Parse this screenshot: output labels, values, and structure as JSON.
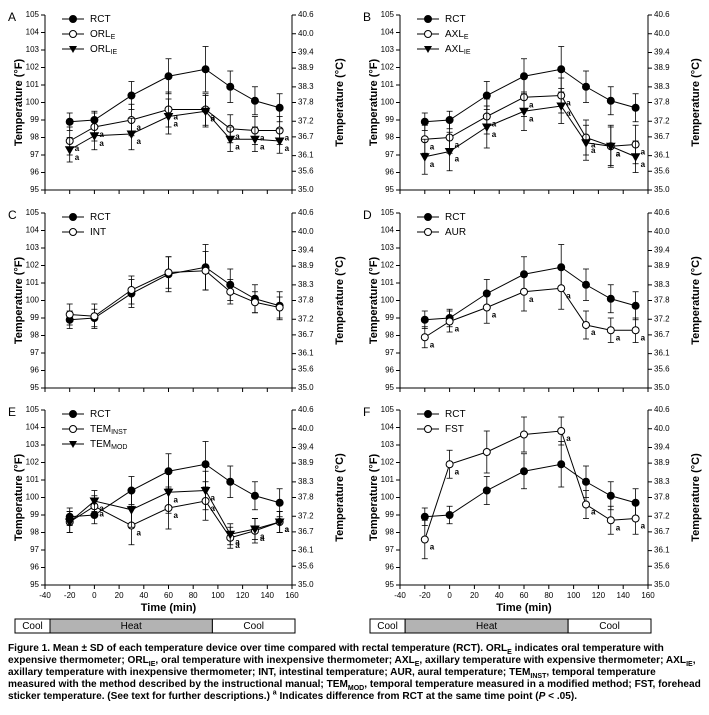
{
  "chart_data": [
    {
      "type": "line",
      "panel_label": "A",
      "ylabel": "Temperature (°F)",
      "y2label": "Temperature (°C)",
      "xtick_labels": false,
      "x": [
        -20,
        0,
        30,
        60,
        90,
        110,
        130,
        150
      ],
      "xlim": [
        -40,
        160
      ],
      "xticks": [
        -40,
        -20,
        0,
        20,
        40,
        60,
        80,
        100,
        120,
        140,
        160
      ],
      "ylim": [
        95,
        105
      ],
      "yticks": [
        95,
        96,
        97,
        98,
        99,
        100,
        101,
        102,
        103,
        104,
        105
      ],
      "y2lim": [
        35,
        40.6
      ],
      "y2ticks": [
        {
          "value": 35,
          "label": "35.0"
        },
        35.6,
        36.1,
        36.7,
        37.2,
        37.8,
        38.3,
        38.9,
        39.4,
        {
          "value": 40,
          "label": "40.0"
        },
        40.6
      ],
      "series": [
        {
          "name": "RCT",
          "marker": "filled-circle",
          "color": "#000000",
          "values": [
            98.9,
            99.0,
            100.4,
            101.5,
            101.9,
            100.9,
            100.1,
            99.7
          ],
          "errors": [
            0.5,
            0.5,
            0.8,
            1.0,
            1.3,
            0.9,
            0.8,
            0.8
          ],
          "sig": [
            null,
            null,
            null,
            null,
            null,
            null,
            null,
            null
          ]
        },
        {
          "name": "ORL",
          "subscript": "E",
          "marker": "open-circle",
          "color": "#000000",
          "values": [
            97.8,
            98.6,
            99.0,
            99.6,
            99.6,
            98.5,
            98.4,
            98.4
          ],
          "errors": [
            0.8,
            0.8,
            0.9,
            1.0,
            0.9,
            0.8,
            0.8,
            0.8
          ],
          "sig": [
            "a",
            "a",
            "a",
            "a",
            "a",
            "a",
            "a",
            "a"
          ]
        },
        {
          "name": "ORL",
          "subscript": "IE",
          "marker": "filled-triangle",
          "color": "#000000",
          "values": [
            97.3,
            98.1,
            98.2,
            99.2,
            99.5,
            97.9,
            97.9,
            97.8
          ],
          "errors": [
            0.7,
            0.8,
            0.9,
            1.0,
            0.9,
            0.7,
            0.7,
            0.7
          ],
          "sig": [
            "a",
            "a",
            "a",
            "a",
            "a",
            "a",
            "a",
            "a"
          ]
        }
      ]
    },
    {
      "type": "line",
      "panel_label": "B",
      "ylabel": "Temperature (°F)",
      "y2label": "Temperature (°C)",
      "xtick_labels": false,
      "x": [
        -20,
        0,
        30,
        60,
        90,
        110,
        130,
        150
      ],
      "xlim": [
        -40,
        160
      ],
      "xticks": [
        -40,
        -20,
        0,
        20,
        40,
        60,
        80,
        100,
        120,
        140,
        160
      ],
      "ylim": [
        95,
        105
      ],
      "yticks": [
        95,
        96,
        97,
        98,
        99,
        100,
        101,
        102,
        103,
        104,
        105
      ],
      "y2lim": [
        35,
        40.6
      ],
      "y2ticks": [
        {
          "value": 35,
          "label": "35.0"
        },
        35.6,
        36.1,
        36.7,
        37.2,
        37.8,
        38.3,
        38.9,
        39.4,
        {
          "value": 40,
          "label": "40.0"
        },
        40.6
      ],
      "series": [
        {
          "name": "RCT",
          "marker": "filled-circle",
          "color": "#000000",
          "values": [
            98.9,
            99.0,
            100.4,
            101.5,
            101.9,
            100.9,
            100.1,
            99.7
          ],
          "errors": [
            0.5,
            0.5,
            0.8,
            1.0,
            1.3,
            0.9,
            0.8,
            0.8
          ],
          "sig": [
            null,
            null,
            null,
            null,
            null,
            null,
            null,
            null
          ]
        },
        {
          "name": "AXL",
          "subscript": "E",
          "marker": "open-circle",
          "color": "#000000",
          "values": [
            97.9,
            98.0,
            99.2,
            100.3,
            100.4,
            98.0,
            97.5,
            97.6
          ],
          "errors": [
            0.8,
            0.9,
            1.0,
            1.1,
            1.0,
            1.0,
            1.1,
            1.1
          ],
          "sig": [
            "a",
            "a",
            "a",
            "a",
            "a",
            "a",
            "a",
            "a"
          ]
        },
        {
          "name": "AXL",
          "subscript": "IE",
          "marker": "filled-triangle",
          "color": "#000000",
          "values": [
            96.9,
            97.2,
            98.6,
            99.5,
            99.8,
            97.7,
            97.5,
            96.9
          ],
          "errors": [
            1.0,
            1.1,
            1.2,
            1.1,
            1.0,
            1.0,
            1.2,
            0.9
          ],
          "sig": [
            "a",
            "a",
            "a",
            "a",
            "a",
            "a",
            "a",
            "a"
          ]
        }
      ]
    },
    {
      "type": "line",
      "panel_label": "C",
      "ylabel": "Temperature (°F)",
      "y2label": "Temperature (°C)",
      "xtick_labels": false,
      "x": [
        -20,
        0,
        30,
        60,
        90,
        110,
        130,
        150
      ],
      "xlim": [
        -40,
        160
      ],
      "xticks": [
        -40,
        -20,
        0,
        20,
        40,
        60,
        80,
        100,
        120,
        140,
        160
      ],
      "ylim": [
        95,
        105
      ],
      "yticks": [
        95,
        96,
        97,
        98,
        99,
        100,
        101,
        102,
        103,
        104,
        105
      ],
      "y2lim": [
        35,
        40.6
      ],
      "y2ticks": [
        {
          "value": 35,
          "label": "35.0"
        },
        35.6,
        36.1,
        36.7,
        37.2,
        37.8,
        38.3,
        38.9,
        39.4,
        {
          "value": 40,
          "label": "40.0"
        },
        40.6
      ],
      "series": [
        {
          "name": "RCT",
          "marker": "filled-circle",
          "color": "#000000",
          "values": [
            98.9,
            99.0,
            100.4,
            101.5,
            101.9,
            100.9,
            100.1,
            99.7
          ],
          "errors": [
            0.5,
            0.5,
            0.8,
            1.0,
            1.3,
            0.9,
            0.8,
            0.8
          ],
          "sig": [
            null,
            null,
            null,
            null,
            null,
            null,
            null,
            null
          ]
        },
        {
          "name": "INT",
          "marker": "open-circle",
          "color": "#000000",
          "values": [
            99.2,
            99.1,
            100.6,
            101.6,
            101.7,
            100.5,
            99.9,
            99.6
          ],
          "errors": [
            0.6,
            0.7,
            0.8,
            0.9,
            1.1,
            0.7,
            0.6,
            0.6
          ],
          "sig": [
            null,
            null,
            null,
            null,
            null,
            null,
            null,
            null
          ]
        }
      ]
    },
    {
      "type": "line",
      "panel_label": "D",
      "ylabel": "Temperature (°F)",
      "y2label": "Temperature (°C)",
      "xtick_labels": false,
      "x": [
        -20,
        0,
        30,
        60,
        90,
        110,
        130,
        150
      ],
      "xlim": [
        -40,
        160
      ],
      "xticks": [
        -40,
        -20,
        0,
        20,
        40,
        60,
        80,
        100,
        120,
        140,
        160
      ],
      "ylim": [
        95,
        105
      ],
      "yticks": [
        95,
        96,
        97,
        98,
        99,
        100,
        101,
        102,
        103,
        104,
        105
      ],
      "y2lim": [
        35,
        40.6
      ],
      "y2ticks": [
        {
          "value": 35,
          "label": "35.0"
        },
        35.6,
        36.1,
        36.7,
        37.2,
        37.8,
        38.3,
        38.9,
        39.4,
        {
          "value": 40,
          "label": "40.0"
        },
        40.6
      ],
      "series": [
        {
          "name": "RCT",
          "marker": "filled-circle",
          "color": "#000000",
          "values": [
            98.9,
            99.0,
            100.4,
            101.5,
            101.9,
            100.9,
            100.1,
            99.7
          ],
          "errors": [
            0.5,
            0.5,
            0.8,
            1.0,
            1.3,
            0.9,
            0.8,
            0.8
          ],
          "sig": [
            null,
            null,
            null,
            null,
            null,
            null,
            null,
            null
          ]
        },
        {
          "name": "AUR",
          "marker": "open-circle",
          "color": "#000000",
          "values": [
            97.9,
            98.8,
            99.6,
            100.5,
            100.7,
            98.6,
            98.3,
            98.3
          ],
          "errors": [
            0.6,
            0.6,
            0.9,
            1.1,
            1.2,
            0.8,
            0.7,
            0.7
          ],
          "sig": [
            "a",
            "a",
            "a",
            "a",
            "a",
            "a",
            "a",
            "a"
          ]
        }
      ]
    },
    {
      "type": "line",
      "panel_label": "E",
      "ylabel": "Temperature (°F)",
      "y2label": "Temperature (°C)",
      "xlabel": "Time (min)",
      "xtick_labels": true,
      "phases": [
        "Cool",
        "Heat",
        "Cool"
      ],
      "x": [
        -20,
        0,
        30,
        60,
        90,
        110,
        130,
        150
      ],
      "xlim": [
        -40,
        160
      ],
      "xticks": [
        -40,
        -20,
        0,
        20,
        40,
        60,
        80,
        100,
        120,
        140,
        160
      ],
      "ylim": [
        95,
        105
      ],
      "yticks": [
        95,
        96,
        97,
        98,
        99,
        100,
        101,
        102,
        103,
        104,
        105
      ],
      "y2lim": [
        35,
        40.6
      ],
      "y2ticks": [
        {
          "value": 35,
          "label": "35.0"
        },
        35.6,
        36.1,
        36.7,
        37.2,
        37.8,
        38.3,
        38.9,
        39.4,
        {
          "value": 40,
          "label": "40.0"
        },
        40.6
      ],
      "series": [
        {
          "name": "RCT",
          "marker": "filled-circle",
          "color": "#000000",
          "values": [
            98.9,
            99.0,
            100.4,
            101.5,
            101.9,
            100.9,
            100.1,
            99.7
          ],
          "errors": [
            0.5,
            0.5,
            0.8,
            1.0,
            1.3,
            0.9,
            0.8,
            0.8
          ],
          "sig": [
            null,
            null,
            null,
            null,
            null,
            null,
            null,
            null
          ]
        },
        {
          "name": "TEM",
          "subscript": "INST",
          "marker": "open-circle",
          "color": "#000000",
          "values": [
            98.6,
            99.5,
            98.4,
            99.4,
            99.8,
            97.7,
            98.1,
            98.6
          ],
          "errors": [
            0.6,
            0.6,
            1.1,
            1.2,
            1.1,
            0.6,
            0.7,
            0.6
          ],
          "sig": [
            null,
            "a",
            "a",
            "a",
            "a",
            "a",
            "a",
            "a"
          ]
        },
        {
          "name": "TEM",
          "subscript": "MOD",
          "marker": "filled-triangle",
          "color": "#000000",
          "values": [
            98.6,
            99.8,
            99.3,
            100.3,
            100.4,
            97.9,
            98.2,
            98.6
          ],
          "errors": [
            0.6,
            0.6,
            1.0,
            1.2,
            1.1,
            0.6,
            0.6,
            0.6
          ],
          "sig": [
            null,
            "a",
            null,
            "a",
            "a",
            "a",
            "a",
            "a"
          ]
        }
      ]
    },
    {
      "type": "line",
      "panel_label": "F",
      "ylabel": "Temperature (°F)",
      "y2label": "Temperature (°C)",
      "xlabel": "Time (min)",
      "xtick_labels": true,
      "phases": [
        "Cool",
        "Heat",
        "Cool"
      ],
      "x": [
        -20,
        0,
        30,
        60,
        90,
        110,
        130,
        150
      ],
      "xlim": [
        -40,
        160
      ],
      "xticks": [
        -40,
        -20,
        0,
        20,
        40,
        60,
        80,
        100,
        120,
        140,
        160
      ],
      "ylim": [
        95,
        105
      ],
      "yticks": [
        95,
        96,
        97,
        98,
        99,
        100,
        101,
        102,
        103,
        104,
        105
      ],
      "y2lim": [
        35,
        40.6
      ],
      "y2ticks": [
        {
          "value": 35,
          "label": "35.0"
        },
        35.6,
        36.1,
        36.7,
        37.2,
        37.8,
        38.3,
        38.9,
        39.4,
        {
          "value": 40,
          "label": "40.0"
        },
        40.6
      ],
      "series": [
        {
          "name": "RCT",
          "marker": "filled-circle",
          "color": "#000000",
          "values": [
            98.9,
            99.0,
            100.4,
            101.5,
            101.9,
            100.9,
            100.1,
            99.7
          ],
          "errors": [
            0.5,
            0.5,
            0.8,
            1.0,
            1.3,
            0.9,
            0.8,
            0.8
          ],
          "sig": [
            null,
            null,
            null,
            null,
            null,
            null,
            null,
            null
          ]
        },
        {
          "name": "FST",
          "marker": "open-circle",
          "color": "#000000",
          "values": [
            97.6,
            101.9,
            102.6,
            103.6,
            103.8,
            99.6,
            98.7,
            98.8
          ],
          "errors": [
            1.1,
            0.8,
            1.2,
            1.0,
            0.8,
            0.8,
            0.8,
            0.9
          ],
          "sig": [
            "a",
            "a",
            null,
            null,
            "a",
            "a",
            "a",
            "a"
          ]
        }
      ]
    }
  ],
  "caption": [
    "Figure 1.  Mean ± SD of each temperature device over time compared with rectal temperature (RCT). ORL",
    "E",
    " indicates oral temperature with expensive thermometer; ORL",
    "IE",
    ", oral temperature with inexpensive thermometer; AXL",
    "E",
    ", axillary temperature with expensive thermometer; AXL",
    "IE",
    ", axillary temperature with inexpensive thermometer; INT, intestinal temperature; AUR, aural temperature; TEM",
    "INST",
    ", temporal temperature measured with the method described by the instructional manual; TEM",
    "MOD",
    ", temporal temperature measured in a modified method; FST, forehead sticker temperature. (See text for further descriptions.) ",
    "a",
    " Indicates difference from RCT at the same time point (",
    "P",
    " < .05)."
  ]
}
